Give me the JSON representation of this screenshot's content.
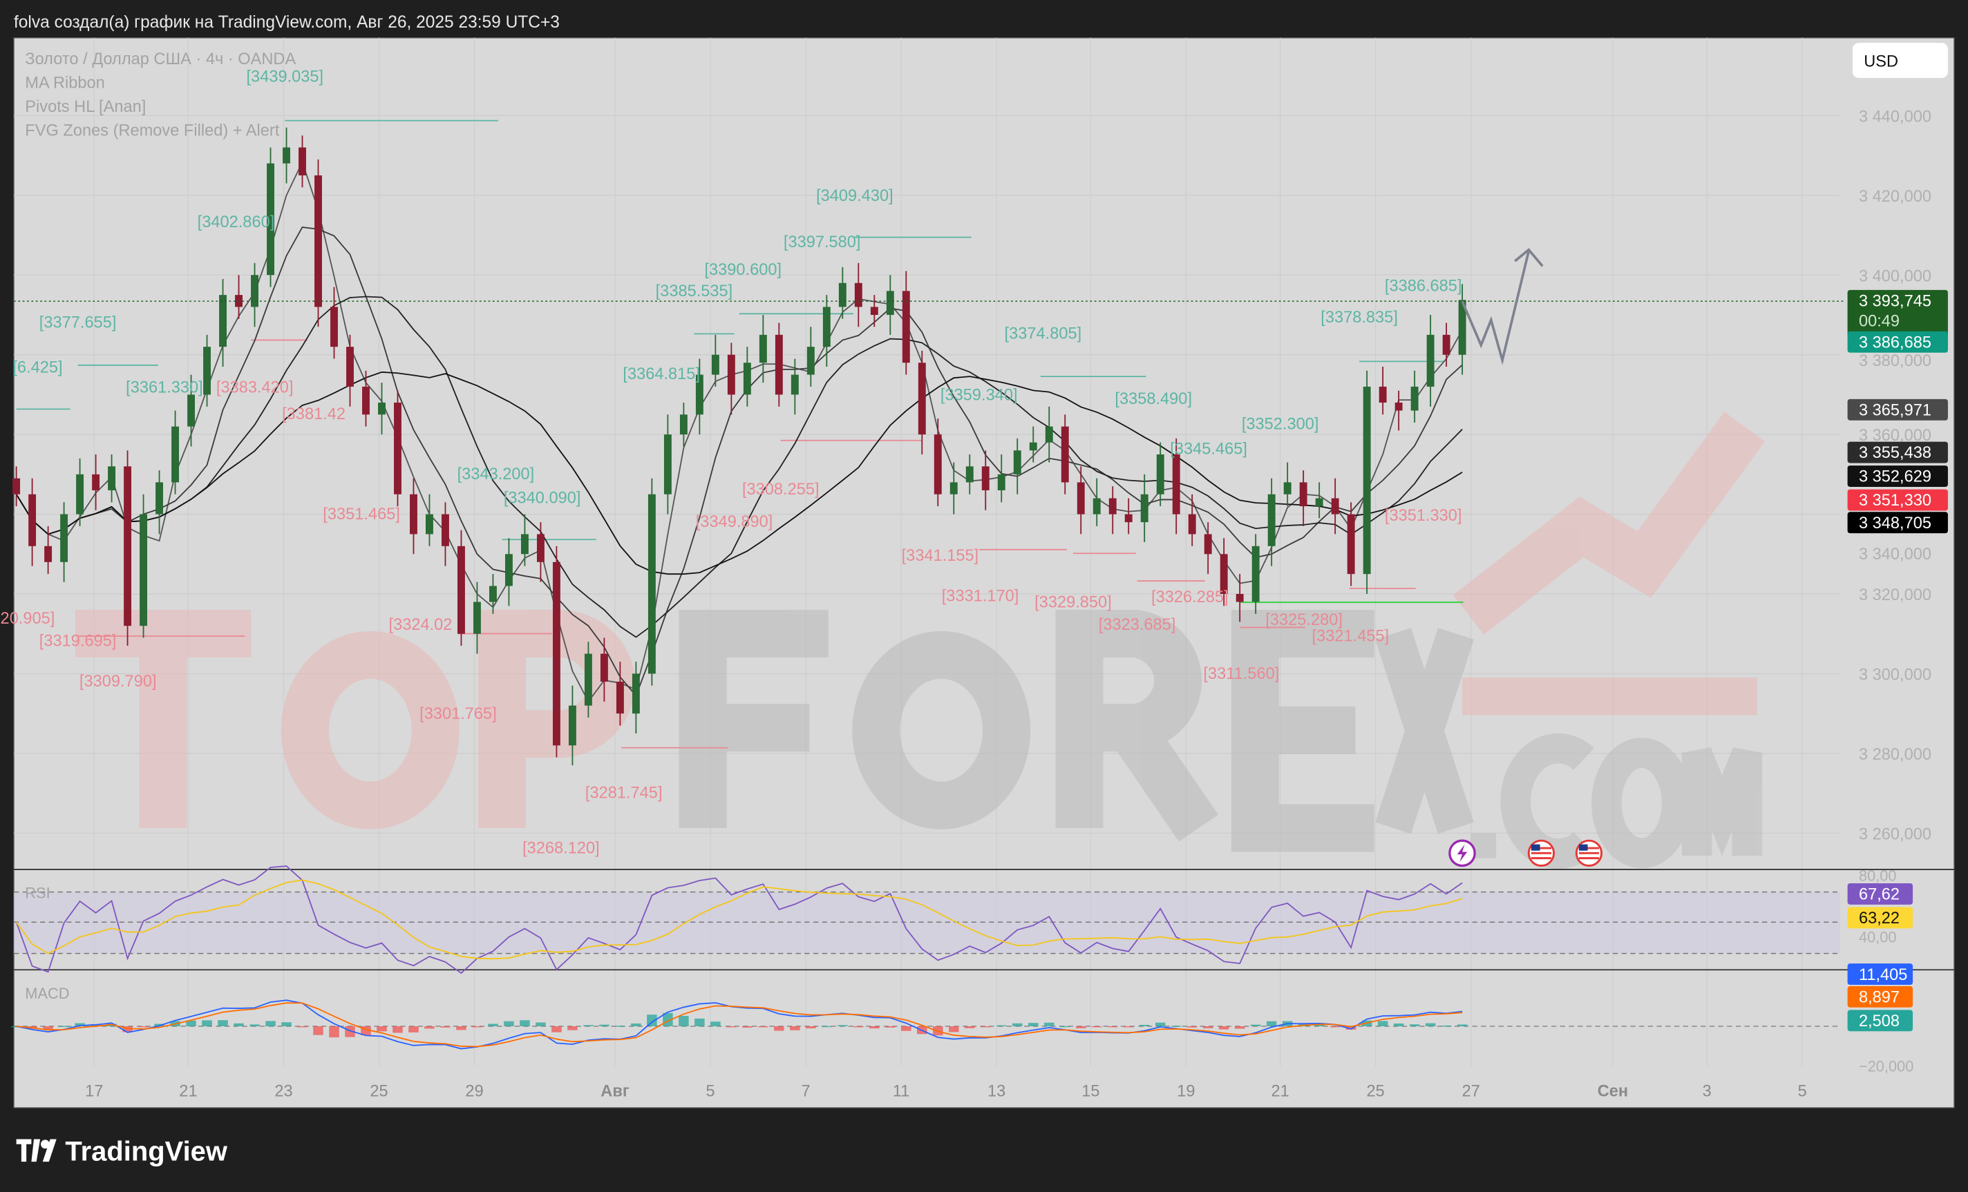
{
  "header": {
    "caption": "folva создал(а) график на TradingView.com, Авг 26, 2025 23:59 UTC+3"
  },
  "legend": {
    "symbol": "Золото / Доллар США · 4ч · OANDA",
    "indicators": [
      "MA Ribbon",
      "Pivots HL [Anan]",
      "FVG Zones (Remove Filled) + Alert"
    ]
  },
  "currency_button": "USD",
  "footer": {
    "brand": "TradingView"
  },
  "watermark": {
    "part1": "TOP",
    "part2": "FOREX",
    "part3": ".COM"
  },
  "colors": {
    "up": "#2a6b36",
    "down": "#8b1c30",
    "pivot_high": "#5db5a3",
    "pivot_low": "#e98994",
    "chart_bg": "#d9d9d9"
  },
  "chart_data": [
    {
      "type": "candlestick",
      "title": "Золото / Доллар США · 4ч · OANDA",
      "ylim": [
        3250,
        3450
      ],
      "yticks": [
        "3 440,000",
        "3 420,000",
        "3 400,000",
        "3 380,000",
        "3 360,000",
        "3 340,000",
        "3 320,000",
        "3 300,000",
        "3 280,000",
        "3 260,000"
      ],
      "xticks": [
        "17",
        "21",
        "23",
        "25",
        "29",
        "Авг",
        "5",
        "7",
        "11",
        "13",
        "15",
        "19",
        "21",
        "25",
        "27",
        "Сен",
        "3",
        "5"
      ],
      "closes": [
        3345,
        3332,
        3328,
        3340,
        3350,
        3346,
        3352,
        3312,
        3340,
        3348,
        3362,
        3370,
        3382,
        3395,
        3392,
        3400,
        3428,
        3432,
        3425,
        3392,
        3382,
        3372,
        3365,
        3368,
        3345,
        3335,
        3340,
        3332,
        3310,
        3318,
        3322,
        3330,
        3335,
        3328,
        3282,
        3292,
        3305,
        3298,
        3290,
        3300,
        3345,
        3360,
        3365,
        3375,
        3380,
        3370,
        3378,
        3385,
        3370,
        3375,
        3382,
        3392,
        3398,
        3392,
        3390,
        3396,
        3378,
        3360,
        3345,
        3348,
        3352,
        3346,
        3350,
        3356,
        3358,
        3362,
        3348,
        3340,
        3344,
        3340,
        3338,
        3345,
        3355,
        3340,
        3335,
        3330,
        3320,
        3318,
        3332,
        3345,
        3348,
        3342,
        3344,
        3340,
        3325,
        3372,
        3368,
        3366,
        3372,
        3385,
        3380,
        3393.745
      ],
      "price_badges": [
        {
          "value": "3 393,745",
          "sub": "00:49",
          "color": "#1e5e20"
        },
        {
          "value": "3 386,685",
          "color": "#0e9a83"
        },
        {
          "value": "3 365,971",
          "color": "#4a4a4a"
        },
        {
          "value": "3 355,438",
          "color": "#2b2b2b"
        },
        {
          "value": "3 352,629",
          "color": "#111111"
        },
        {
          "value": "3 351,330",
          "color": "#f23645"
        },
        {
          "value": "3 348,705",
          "color": "#000000"
        }
      ],
      "pivot_labels_high": [
        "[3439.035]",
        "[3402.860]",
        "[3377.655]",
        "[3361.330]",
        "[6.425]",
        "[3409.430]",
        "[3397.580]",
        "[3390.600]",
        "[3385.535]",
        "[3364.815]",
        "[3374.805]",
        "[3359.340]",
        "[3358.490]",
        "[3352.300]",
        "[3345.465]",
        "[3386.685]",
        "[3378.835]",
        "[3343.200]",
        "[3340.090]"
      ],
      "pivot_labels_low": [
        "[3383.420]",
        "[3381.42",
        "[3351.465]",
        "[3324.02",
        "[3301.765]",
        "[3268.120]",
        "[3281.745]",
        "[3319.695]",
        "[3309.790]",
        "20.905]",
        "[3308.255]",
        "[3349.890]",
        "[3341.155]",
        "[3331.170]",
        "[3329.850]",
        "[3323.685]",
        "[3326.285]",
        "[3325.280]",
        "[3321.455]",
        "[3311.560]",
        "[3351.330]"
      ]
    },
    {
      "type": "line",
      "title": "RSI",
      "yticks": [
        "80,00",
        "40,00"
      ],
      "levels": [
        70,
        50,
        30
      ],
      "badges": [
        {
          "value": "67,62",
          "color": "#7e57c2"
        },
        {
          "value": "63,22",
          "color": "#fdd835"
        }
      ]
    },
    {
      "type": "bar",
      "title": "MACD",
      "yticks": [
        "−20,000"
      ],
      "badges": [
        {
          "value": "11,405",
          "color": "#2962ff"
        },
        {
          "value": "8,897",
          "color": "#ff6d00"
        },
        {
          "value": "2,508",
          "color": "#26a69a"
        }
      ]
    }
  ]
}
